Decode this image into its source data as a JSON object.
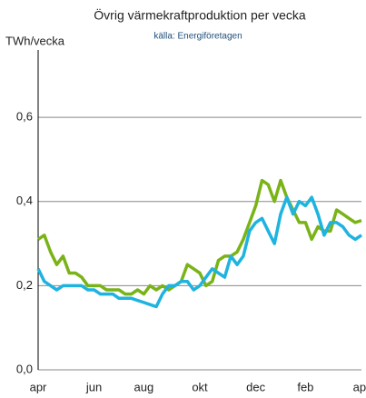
{
  "chart_data": {
    "type": "line",
    "title": "Övrig värmekraftproduktion per vecka",
    "subtitle": "källa: Energiföretagen",
    "y_label": "TWh/vecka",
    "categories": [
      "apr",
      null,
      null,
      null,
      null,
      null,
      null,
      null,
      null,
      "jun",
      null,
      null,
      null,
      null,
      null,
      null,
      null,
      "aug",
      null,
      null,
      null,
      null,
      null,
      null,
      null,
      null,
      "okt",
      null,
      null,
      null,
      null,
      null,
      null,
      null,
      null,
      "dec",
      null,
      null,
      null,
      null,
      null,
      null,
      null,
      "feb",
      null,
      null,
      null,
      null,
      null,
      null,
      null,
      null,
      "apr"
    ],
    "series": [
      {
        "color": "#7ab317",
        "values": [
          0.31,
          0.32,
          0.28,
          0.25,
          0.27,
          0.23,
          0.23,
          0.22,
          0.2,
          0.2,
          0.2,
          0.19,
          0.19,
          0.19,
          0.18,
          0.18,
          0.19,
          0.18,
          0.2,
          0.19,
          0.2,
          0.19,
          0.2,
          0.21,
          0.25,
          0.24,
          0.23,
          0.2,
          0.21,
          0.26,
          0.27,
          0.27,
          0.28,
          0.31,
          0.35,
          0.39,
          0.45,
          0.44,
          0.4,
          0.45,
          0.41,
          0.38,
          0.35,
          0.35,
          0.31,
          0.34,
          0.33,
          0.33,
          0.38,
          0.37,
          0.36,
          0.35,
          0.355
        ]
      },
      {
        "color": "#1fb3e0",
        "values": [
          0.24,
          0.21,
          0.2,
          0.19,
          0.2,
          0.2,
          0.2,
          0.2,
          0.19,
          0.19,
          0.18,
          0.18,
          0.18,
          0.17,
          0.17,
          0.17,
          0.165,
          0.16,
          0.155,
          0.15,
          0.18,
          0.2,
          0.2,
          0.21,
          0.21,
          0.19,
          0.2,
          0.22,
          0.24,
          0.23,
          0.22,
          0.27,
          0.25,
          0.27,
          0.33,
          0.35,
          0.36,
          0.33,
          0.3,
          0.37,
          0.41,
          0.37,
          0.4,
          0.39,
          0.41,
          0.37,
          0.32,
          0.35,
          0.35,
          0.34,
          0.32,
          0.31,
          0.32
        ]
      }
    ],
    "ylim": [
      0,
      0.76
    ],
    "yticks": [
      {
        "value": 0,
        "label": "0,0"
      },
      {
        "value": 0.2,
        "label": "0,2"
      },
      {
        "value": 0.4,
        "label": "0,4"
      },
      {
        "value": 0.6,
        "label": "0,6"
      }
    ],
    "grid": true
  }
}
